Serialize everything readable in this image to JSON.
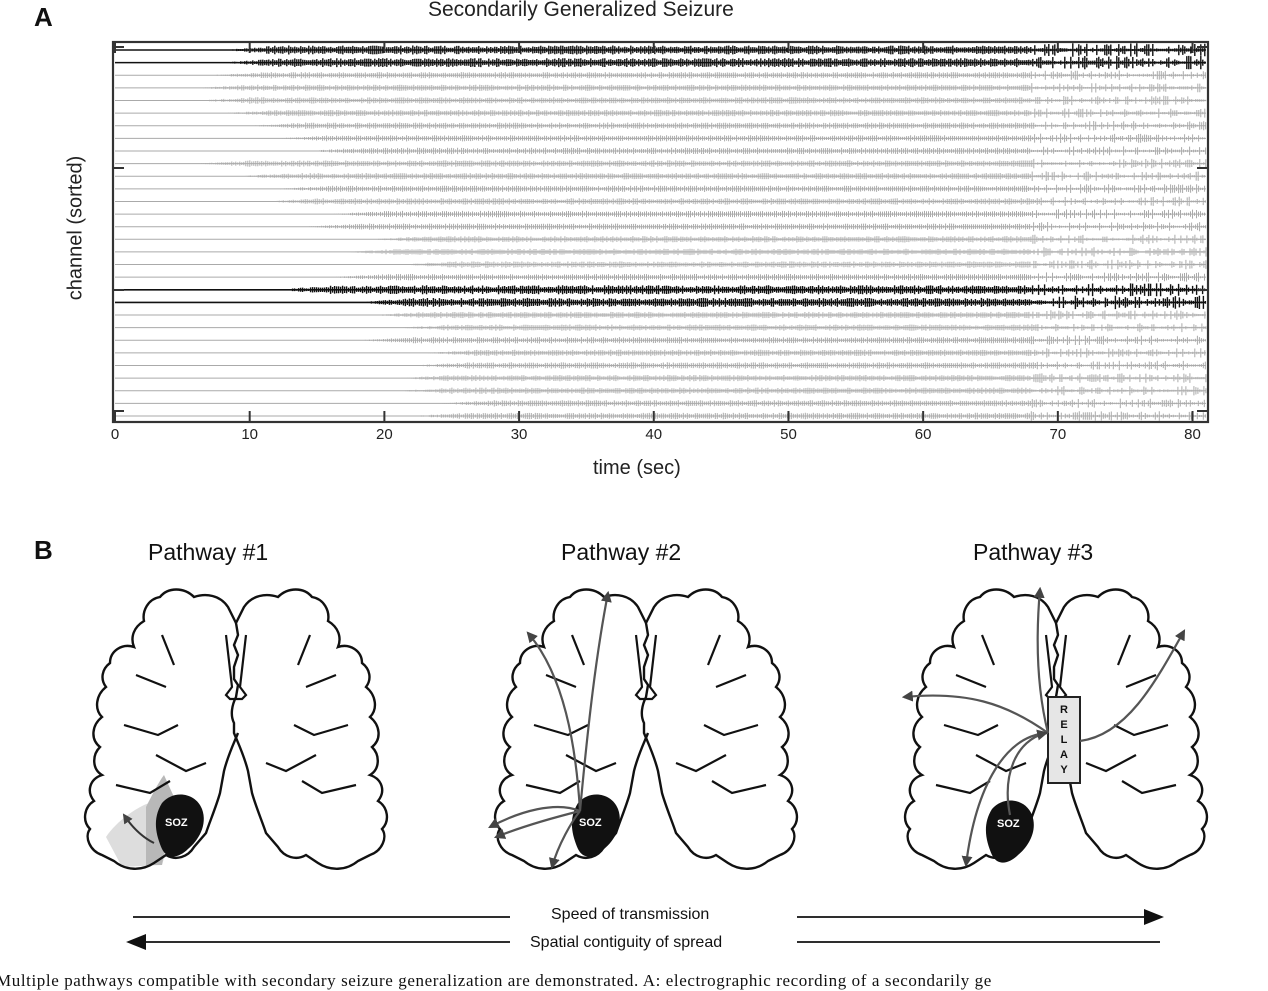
{
  "panel_a": {
    "letter": "A",
    "chart_data": {
      "type": "line",
      "title": "Secondarily Generalized Seizure",
      "xlabel": "time (sec)",
      "ylabel": "channel (sorted)",
      "xlim": [
        0,
        81
      ],
      "x_ticks": [
        "0",
        "10",
        "20",
        "30",
        "40",
        "50",
        "60",
        "70",
        "80"
      ],
      "channel_count": 30,
      "highlighted_channels": [
        1,
        2,
        20,
        21
      ],
      "seizure_onset_by_channel_sec": [
        8,
        8,
        7,
        6,
        6,
        8,
        10,
        12,
        14,
        6,
        9,
        12,
        11,
        16,
        14,
        19,
        17,
        21,
        16,
        12,
        18,
        19,
        21,
        18,
        23,
        22,
        21,
        21,
        24,
        22
      ],
      "colors": {
        "normal_trace": "#aaaaaa",
        "highlighted_trace": "#111111",
        "frame": "#333333"
      }
    }
  },
  "panel_b": {
    "letter": "B",
    "pathways": [
      {
        "title": "Pathway #1",
        "soz_label": "SOZ"
      },
      {
        "title": "Pathway #2",
        "soz_label": "SOZ"
      },
      {
        "title": "Pathway #3",
        "soz_label": "SOZ",
        "relay_label": "RELAY",
        "relay_letters": [
          "R",
          "E",
          "L",
          "A",
          "Y"
        ]
      }
    ],
    "speed_label": "Speed of transmission",
    "contiguity_label": "Spatial contiguity of spread"
  },
  "caption": "Multiple pathways compatible with secondary seizure generalization are demonstrated. A: electrographic recording of a secondarily ge"
}
